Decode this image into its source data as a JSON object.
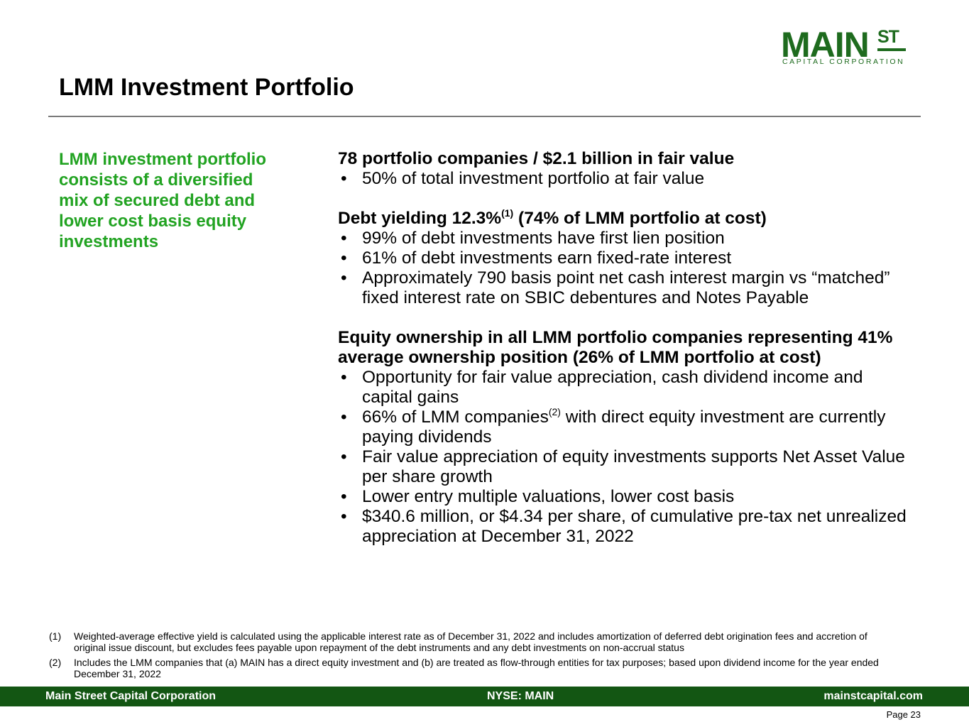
{
  "logo": {
    "main": "MAIN",
    "superscript": "ST",
    "subtitle": "CAPITAL CORPORATION",
    "color": "#1e6b1e"
  },
  "title": "LMM Investment Portfolio",
  "sidebar": {
    "summary": "LMM investment portfolio consists of a diversified mix of secured debt and lower cost basis equity investments",
    "color": "#22a322"
  },
  "sections": [
    {
      "heading": "78 portfolio companies / $2.1 billion in fair value",
      "bullets": [
        "50% of total investment portfolio at fair value"
      ]
    },
    {
      "heading_pre": "Debt yielding 12.3%",
      "heading_sup": "(1)",
      "heading_post": " (74% of LMM portfolio at cost)",
      "bullets": [
        "99% of debt investments have first lien position",
        "61% of debt investments earn fixed-rate interest",
        "Approximately 790 basis point net cash interest margin vs “matched” fixed interest rate on SBIC debentures and Notes Payable"
      ]
    },
    {
      "heading": "Equity ownership in all LMM portfolio companies representing 41% average ownership position (26% of LMM portfolio at cost)",
      "bullets": [
        "Opportunity for fair value appreciation, cash dividend income and capital gains",
        {
          "pre": "66% of LMM companies",
          "sup": "(2)",
          "post": " with direct equity investment are currently paying dividends"
        },
        "Fair value appreciation of equity investments supports Net Asset Value per share growth",
        "Lower entry multiple valuations, lower cost basis",
        "$340.6 million, or $4.34 per share, of cumulative pre-tax net unrealized appreciation at December 31, 2022"
      ]
    }
  ],
  "footnotes": [
    {
      "num": "(1)",
      "text": "Weighted-average effective yield is calculated using the applicable interest rate as of December 31, 2022 and includes amortization of deferred debt origination fees and accretion of original issue discount, but excludes fees payable upon repayment of the debt instruments and any debt investments on non-accrual status"
    },
    {
      "num": "(2)",
      "text": "Includes the LMM companies that (a) MAIN has a direct equity investment and (b) are treated as flow-through entities for tax purposes; based upon dividend income for the year ended December 31, 2022"
    }
  ],
  "footer": {
    "left": "Main Street Capital Corporation",
    "center": "NYSE: MAIN",
    "right": "mainstcapital.com",
    "bar_color": "#135613"
  },
  "page": "Page  23"
}
